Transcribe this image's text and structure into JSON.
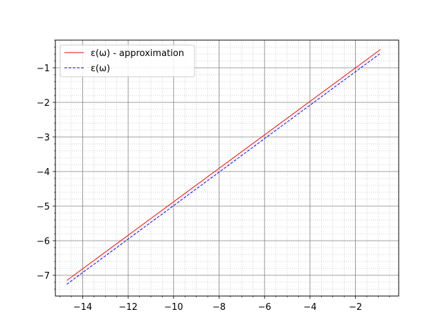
{
  "chart_data": {
    "type": "line",
    "title": "",
    "xlabel": "",
    "ylabel": "",
    "xlim": [
      -15.2,
      -0.1
    ],
    "ylim": [
      -7.6,
      -0.2
    ],
    "x_ticks": [
      -14,
      -12,
      -10,
      -8,
      -6,
      -4,
      -2
    ],
    "y_ticks": [
      -7,
      -6,
      -5,
      -4,
      -3,
      -2,
      -1
    ],
    "x_tick_labels": [
      "−14",
      "−12",
      "−10",
      "−8",
      "−6",
      "−4",
      "−2"
    ],
    "y_tick_labels": [
      "−7",
      "−6",
      "−5",
      "−4",
      "−3",
      "−2",
      "−1"
    ],
    "grid": {
      "major": true,
      "minor": true
    },
    "legend_position": "top-left",
    "series": [
      {
        "name": "ε(ω) - approximation",
        "color": "#ff0000",
        "style": "solid",
        "x": [
          -14.7,
          -0.9
        ],
        "y": [
          -7.15,
          -0.47
        ]
      },
      {
        "name": "ε(ω)",
        "color": "#0000ff",
        "style": "dashed",
        "x": [
          -14.7,
          -0.9
        ],
        "y": [
          -7.26,
          -0.58
        ]
      }
    ]
  }
}
